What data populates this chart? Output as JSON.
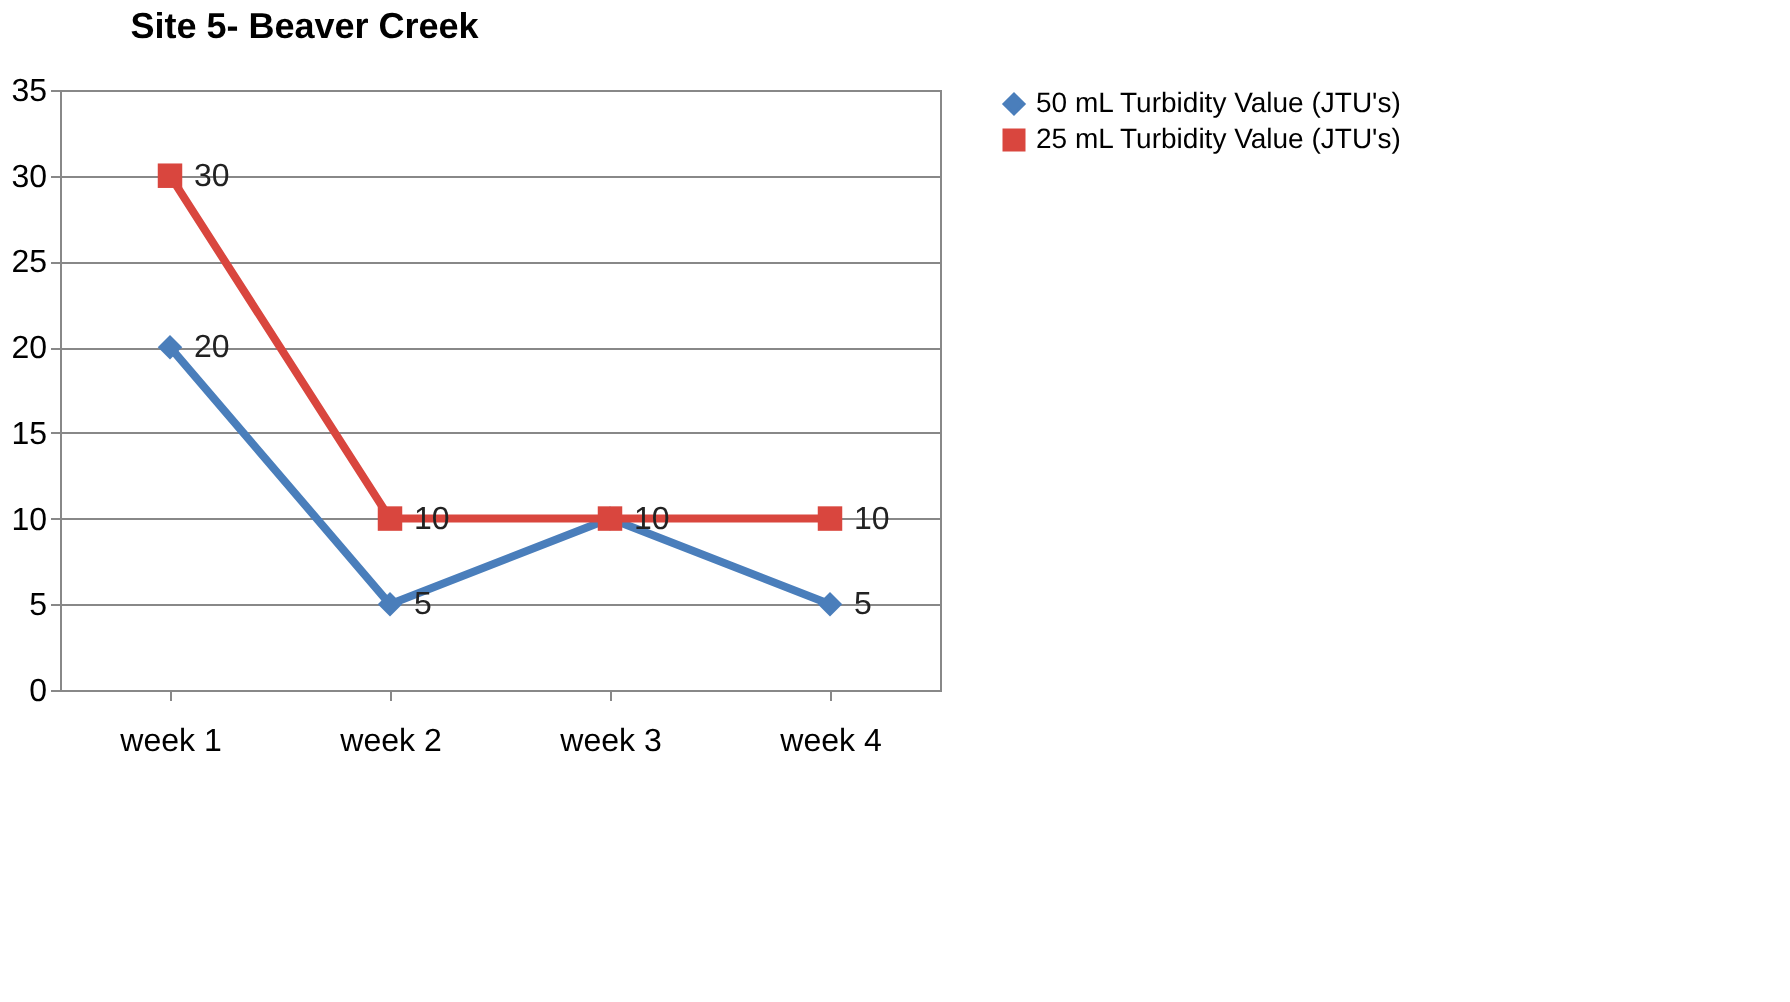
{
  "chart_data": {
    "type": "line",
    "title": "Site 5- Beaver Creek",
    "categories": [
      "week 1",
      "week 2",
      "week 3",
      "week 4"
    ],
    "series": [
      {
        "name": "50 mL Turbidity Value (JTU's)",
        "color": "#4a7ebb",
        "marker": "diamond",
        "values": [
          20,
          5,
          10,
          5
        ],
        "value_labels": [
          "20",
          "5",
          null,
          "5"
        ]
      },
      {
        "name": "25 mL Turbidity Value (JTU's)",
        "color": "#d9463e",
        "marker": "square",
        "values": [
          30,
          10,
          10,
          10
        ],
        "value_labels": [
          "30",
          "10",
          "10",
          "10"
        ]
      }
    ],
    "ylim": [
      0,
      35
    ],
    "yticks": [
      0,
      5,
      10,
      15,
      20,
      25,
      30,
      35
    ],
    "grid": "y",
    "legend": "right"
  }
}
